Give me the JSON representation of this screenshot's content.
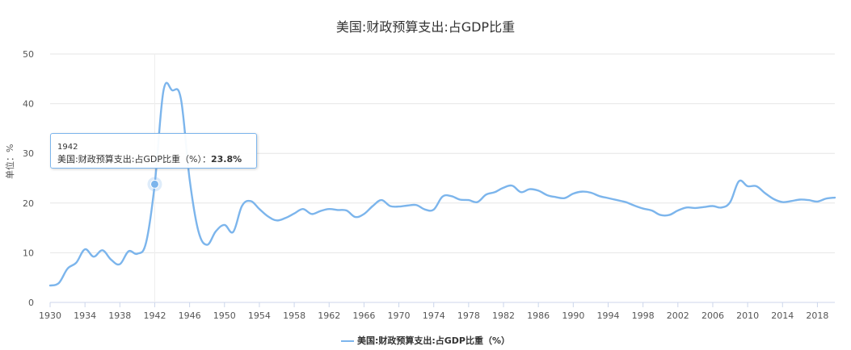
{
  "chart_data": {
    "type": "line",
    "title": "美国:财政预算支出:占GDP比重",
    "ylabel": "单位：%",
    "ylim": [
      0,
      50
    ],
    "yticks": [
      0,
      10,
      20,
      30,
      40,
      50
    ],
    "xlim": [
      1930,
      2020
    ],
    "xticks": [
      1930,
      1934,
      1938,
      1942,
      1946,
      1950,
      1954,
      1958,
      1962,
      1966,
      1970,
      1974,
      1978,
      1982,
      1986,
      1990,
      1994,
      1998,
      2002,
      2006,
      2010,
      2014,
      2018
    ],
    "grid": "horizontal",
    "legend_position": "bottom",
    "series": [
      {
        "name": "美国:财政预算支出:占GDP比重（%）",
        "color": "#7cb5ec",
        "x": [
          1930,
          1931,
          1932,
          1933,
          1934,
          1935,
          1936,
          1937,
          1938,
          1939,
          1940,
          1941,
          1942,
          1943,
          1944,
          1945,
          1946,
          1947,
          1948,
          1949,
          1950,
          1951,
          1952,
          1953,
          1954,
          1955,
          1956,
          1957,
          1958,
          1959,
          1960,
          1961,
          1962,
          1963,
          1964,
          1965,
          1966,
          1967,
          1968,
          1969,
          1970,
          1971,
          1972,
          1973,
          1974,
          1975,
          1976,
          1977,
          1978,
          1979,
          1980,
          1981,
          1982,
          1983,
          1984,
          1985,
          1986,
          1987,
          1988,
          1989,
          1990,
          1991,
          1992,
          1993,
          1994,
          1995,
          1996,
          1997,
          1998,
          1999,
          2000,
          2001,
          2002,
          2003,
          2004,
          2005,
          2006,
          2007,
          2008,
          2009,
          2010,
          2011,
          2012,
          2013,
          2014,
          2015,
          2016,
          2017,
          2018,
          2019,
          2020
        ],
        "values": [
          3.4,
          3.9,
          6.8,
          8.0,
          10.7,
          9.2,
          10.5,
          8.6,
          7.7,
          10.3,
          9.8,
          12.0,
          23.8,
          42.6,
          42.7,
          41.0,
          24.8,
          14.4,
          11.6,
          14.3,
          15.6,
          14.2,
          19.4,
          20.4,
          18.8,
          17.3,
          16.5,
          17.0,
          17.9,
          18.8,
          17.8,
          18.4,
          18.8,
          18.6,
          18.5,
          17.2,
          17.8,
          19.4,
          20.6,
          19.4,
          19.3,
          19.5,
          19.6,
          18.7,
          18.7,
          21.3,
          21.4,
          20.7,
          20.6,
          20.2,
          21.7,
          22.2,
          23.1,
          23.5,
          22.2,
          22.8,
          22.5,
          21.6,
          21.2,
          21.0,
          21.9,
          22.3,
          22.1,
          21.4,
          21.0,
          20.6,
          20.2,
          19.5,
          18.9,
          18.5,
          17.6,
          17.6,
          18.5,
          19.1,
          19.0,
          19.2,
          19.4,
          19.1,
          20.2,
          24.4,
          23.4,
          23.4,
          22.0,
          20.8,
          20.2,
          20.4,
          20.7,
          20.6,
          20.3,
          20.9,
          21.1
        ]
      }
    ],
    "tooltip": {
      "year": "1942",
      "label": "美国:财政预算支出:占GDP比重（%）：",
      "value": "23.8%",
      "x": 1942,
      "y": 23.8
    }
  }
}
